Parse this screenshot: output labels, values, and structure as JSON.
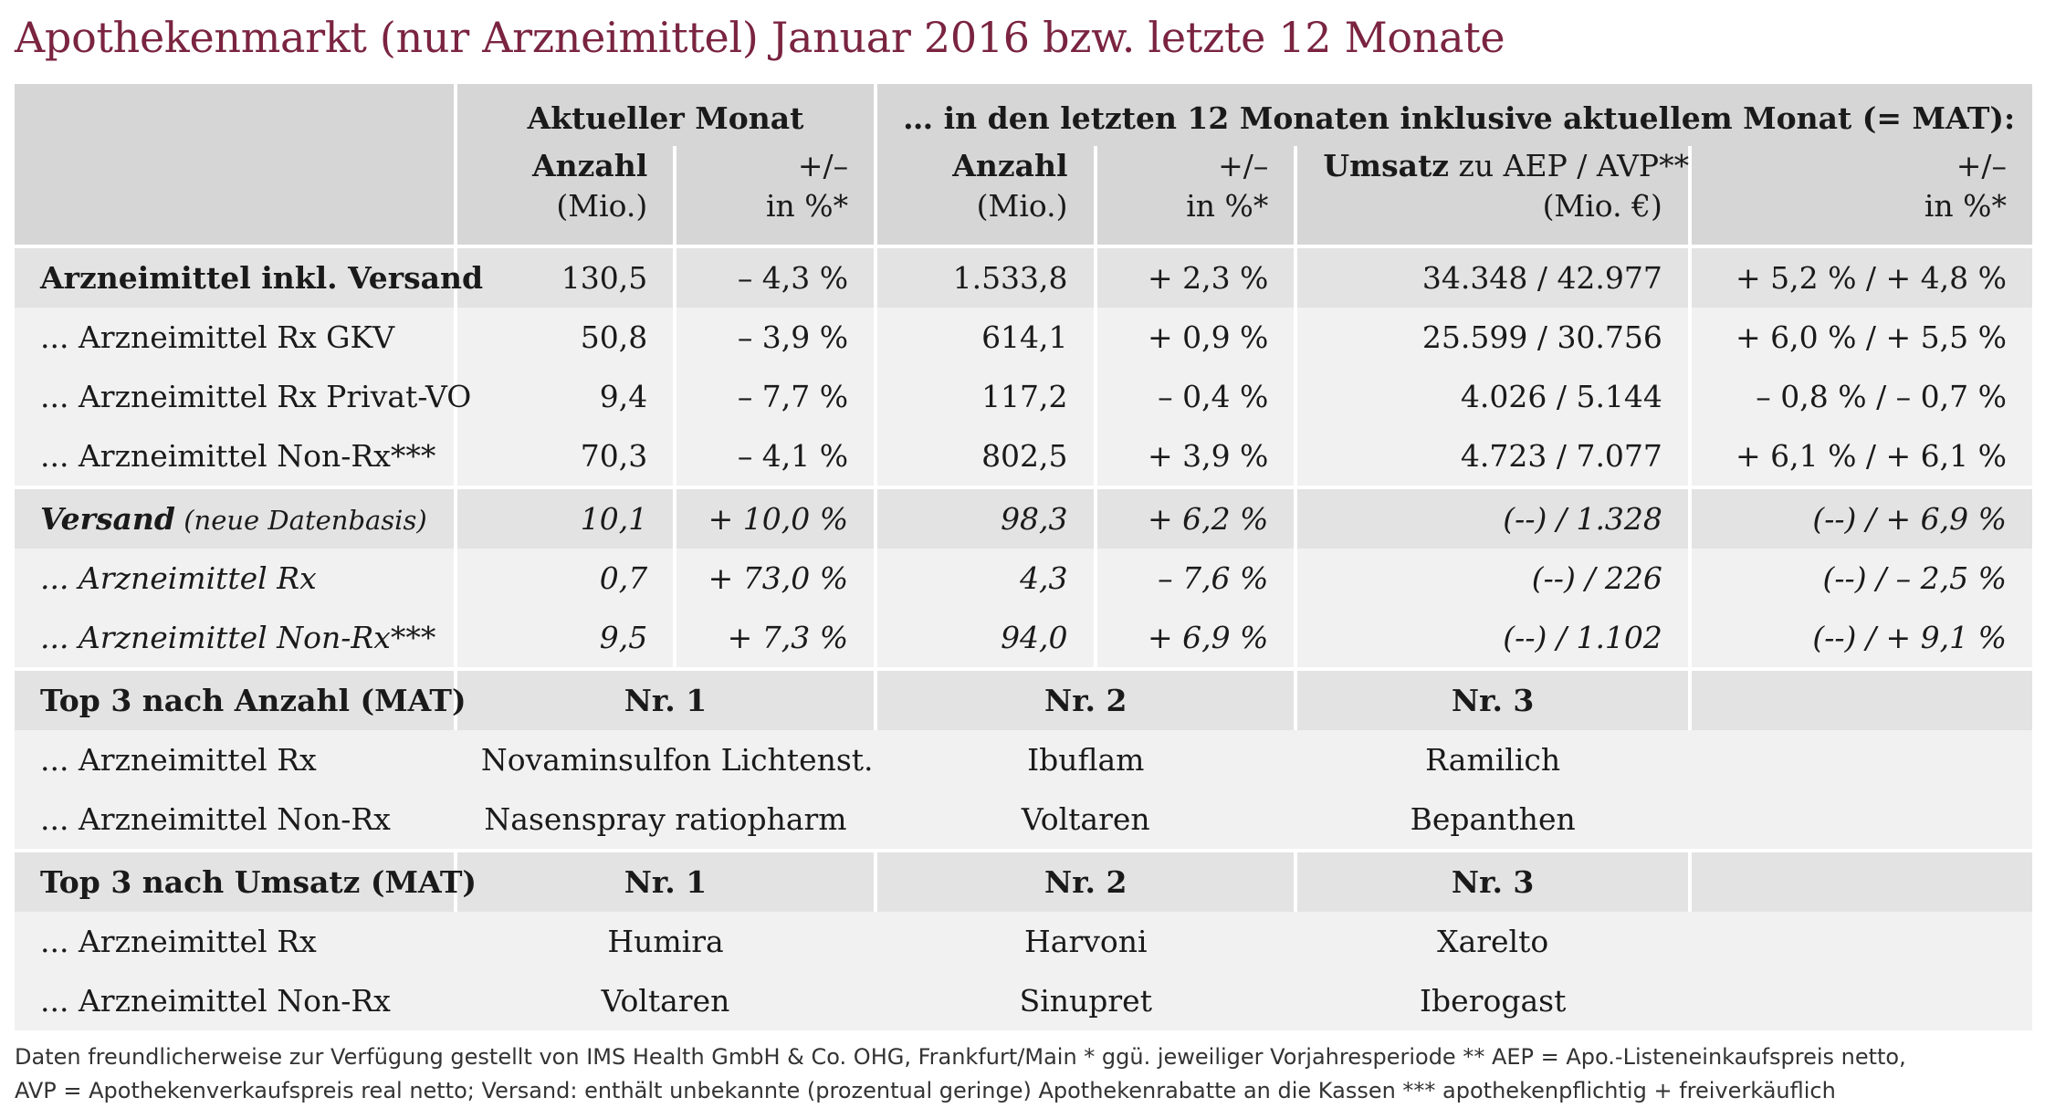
{
  "title": "Apothekenmarkt (nur Arzneimittel) Januar 2016 bzw. letzte 12 Monate",
  "header": {
    "group_current": "Aktueller Monat",
    "group_mat": "… in den letzten 12 Monaten inklusive aktuellem Monat (= MAT):",
    "col_anzahl_bold": "Anzahl",
    "col_anzahl_unit": "(Mio.)",
    "col_pct_top": "+/–",
    "col_pct_unit": "in %*",
    "col_umsatz_bold": "Umsatz",
    "col_umsatz_rest": " zu AEP / AVP**",
    "col_umsatz_unit": "(Mio. €)"
  },
  "rows": [
    {
      "label": "Arzneimittel inkl. Versand",
      "anzahl": "130,5",
      "pct": "– 4,3 %",
      "mat_anzahl": "1.533,8",
      "mat_pct": "+ 2,3 %",
      "umsatz": "34.348 / 42.977",
      "umsatz_pct": "+ 5,2 % / + 4,8 %"
    },
    {
      "label": "... Arzneimittel Rx GKV",
      "anzahl": "50,8",
      "pct": "– 3,9 %",
      "mat_anzahl": "614,1",
      "mat_pct": "+ 0,9 %",
      "umsatz": "25.599 / 30.756",
      "umsatz_pct": "+ 6,0 % / + 5,5 %"
    },
    {
      "label": "... Arzneimittel Rx Privat-VO",
      "anzahl": "9,4",
      "pct": "– 7,7 %",
      "mat_anzahl": "117,2",
      "mat_pct": "– 0,4 %",
      "umsatz": "4.026 / 5.144",
      "umsatz_pct": "– 0,8 % / – 0,7 %"
    },
    {
      "label": "... Arzneimittel Non-Rx***",
      "anzahl": "70,3",
      "pct": "– 4,1 %",
      "mat_anzahl": "802,5",
      "mat_pct": "+ 3,9 %",
      "umsatz": "4.723 / 7.077",
      "umsatz_pct": "+ 6,1 % / + 6,1 %"
    }
  ],
  "versand": {
    "label_bold": "Versand",
    "label_note": " (neue Datenbasis)",
    "anzahl": "10,1",
    "pct": "+ 10,0 %",
    "mat_anzahl": "98,3",
    "mat_pct": "+ 6,2 %",
    "umsatz": "(--) / 1.328",
    "umsatz_pct": "(--) / + 6,9 %",
    "rows": [
      {
        "label": "... Arzneimittel Rx",
        "anzahl": "0,7",
        "pct": "+ 73,0 %",
        "mat_anzahl": "4,3",
        "mat_pct": "– 7,6 %",
        "umsatz": "(--) / 226",
        "umsatz_pct": "(--) / – 2,5 %"
      },
      {
        "label": "... Arzneimittel Non-Rx***",
        "anzahl": "9,5",
        "pct": "+ 7,3 %",
        "mat_anzahl": "94,0",
        "mat_pct": "+ 6,9 %",
        "umsatz": "(--) / 1.102",
        "umsatz_pct": "(--) / + 9,1 %"
      }
    ]
  },
  "top_anzahl": {
    "label": "Top 3 nach Anzahl (MAT)",
    "nr1": "Nr. 1",
    "nr2": "Nr. 2",
    "nr3": "Nr. 3",
    "rows": [
      {
        "label": "... Arzneimittel Rx",
        "p1": "Novaminsulfon Lichtenst.",
        "p2": "Ibuflam",
        "p3": "Ramilich"
      },
      {
        "label": "... Arzneimittel Non-Rx",
        "p1": "Nasenspray ratiopharm",
        "p2": "Voltaren",
        "p3": "Bepanthen"
      }
    ]
  },
  "top_umsatz": {
    "label": "Top 3 nach Umsatz (MAT)",
    "nr1": "Nr. 1",
    "nr2": "Nr. 2",
    "nr3": "Nr. 3",
    "rows": [
      {
        "label": "... Arzneimittel Rx",
        "p1": "Humira",
        "p2": "Harvoni",
        "p3": "Xarelto"
      },
      {
        "label": "... Arzneimittel Non-Rx",
        "p1": "Voltaren",
        "p2": "Sinupret",
        "p3": "Iberogast"
      }
    ]
  },
  "footnote": {
    "line1": "Daten freundlicherweise zur Verfügung gestellt von IMS Health GmbH & Co. OHG, Frankfurt/Main   * ggü. jeweiliger Vorjahresperiode   ** AEP = Apo.-Listeneinkaufspreis netto,",
    "line2": "AVP = Apothekenverkaufspreis real netto; Versand: enthält unbekannte (prozentual geringe) Apothekenrabatte an die Kassen   *** apothekenpflichtig + freiverkäuflich"
  },
  "colors": {
    "title": "#7a2440",
    "header_bg": "#d6d6d6",
    "shade_bg": "#e3e3e3",
    "light_bg": "#f1f1f1"
  }
}
